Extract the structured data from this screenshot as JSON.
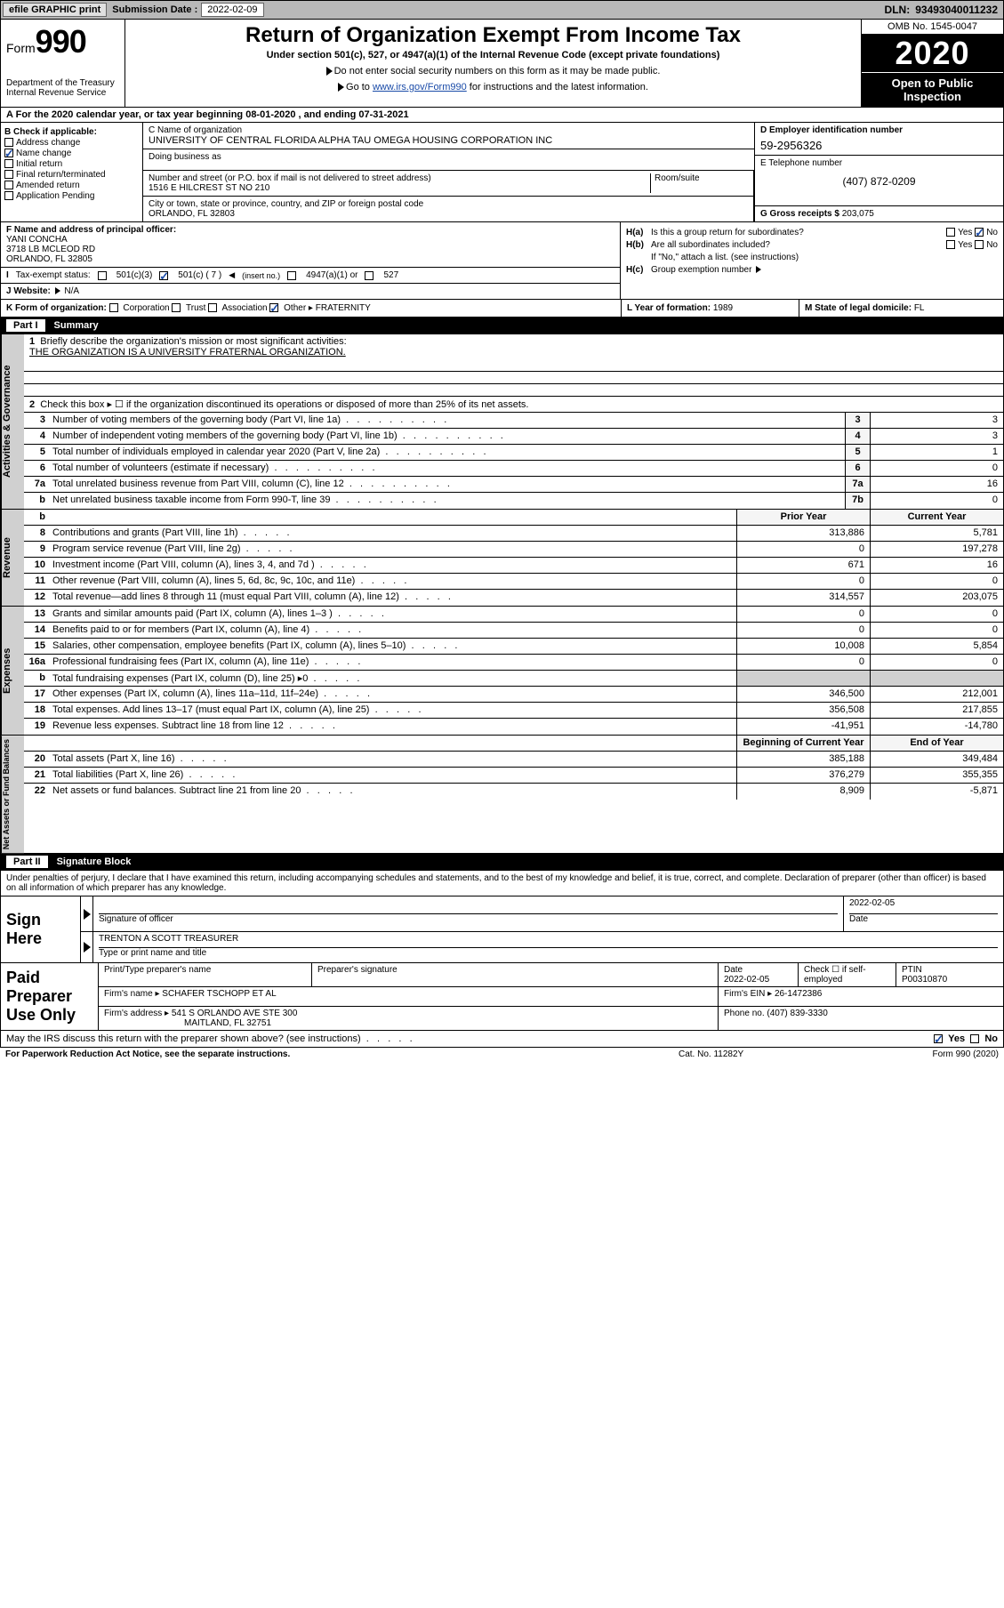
{
  "topbar": {
    "efile": "efile GRAPHIC print",
    "subdate_label": "Submission Date :",
    "subdate": "2022-02-09",
    "dln_label": "DLN:",
    "dln": "93493040011232"
  },
  "header": {
    "form_prefix": "Form",
    "form_number": "990",
    "dept1": "Department of the Treasury",
    "dept2": "Internal Revenue Service",
    "title": "Return of Organization Exempt From Income Tax",
    "sub": "Under section 501(c), 527, or 4947(a)(1) of the Internal Revenue Code (except private foundations)",
    "inst1": "Do not enter social security numbers on this form as it may be made public.",
    "inst2_pre": "Go to ",
    "inst2_link": "www.irs.gov/Form990",
    "inst2_post": " for instructions and the latest information.",
    "omb": "OMB No. 1545-0047",
    "year": "2020",
    "open1": "Open to Public",
    "open2": "Inspection"
  },
  "line_a": "For the 2020 calendar year, or tax year beginning 08-01-2020   , and ending 07-31-2021",
  "col_b": {
    "label": "B Check if applicable:",
    "addr": "Address change",
    "name": "Name change",
    "init": "Initial return",
    "final": "Final return/terminated",
    "amend": "Amended return",
    "app": "Application Pending"
  },
  "col_c": {
    "name_label": "C Name of organization",
    "name": "UNIVERSITY OF CENTRAL FLORIDA ALPHA TAU OMEGA HOUSING CORPORATION INC",
    "dba_label": "Doing business as",
    "street_label": "Number and street (or P.O. box if mail is not delivered to street address)",
    "street": "1516 E HILCREST ST NO 210",
    "room_label": "Room/suite",
    "city_label": "City or town, state or province, country, and ZIP or foreign postal code",
    "city": "ORLANDO, FL  32803"
  },
  "col_d": {
    "ein_label": "D Employer identification number",
    "ein": "59-2956326",
    "tel_label": "E Telephone number",
    "tel": "(407) 872-0209",
    "gross_label": "G Gross receipts $",
    "gross": "203,075"
  },
  "col_f": {
    "officer_label": "F Name and address of principal officer:",
    "officer_name": "YANI CONCHA",
    "officer_addr1": "3718 LB MCLEOD RD",
    "officer_addr2": "ORLANDO, FL  32805",
    "tax_label": "Tax-exempt status:",
    "tax_501c3": "501(c)(3)",
    "tax_501c": "501(c) ( 7 )",
    "tax_insert": "(insert no.)",
    "tax_4947": "4947(a)(1) or",
    "tax_527": "527",
    "web_label": "J   Website:",
    "web": "N/A"
  },
  "col_h": {
    "ha_label": "H(a)",
    "ha_text": "Is this a group return for subordinates?",
    "hb_label": "H(b)",
    "hb_text": "Are all subordinates included?",
    "h_ifno": "If \"No,\" attach a list. (see instructions)",
    "hc_label": "H(c)",
    "hc_text": "Group exemption number",
    "yes": "Yes",
    "no": "No"
  },
  "line_k": {
    "k_label": "K Form of organization:",
    "k_corp": "Corporation",
    "k_trust": "Trust",
    "k_assoc": "Association",
    "k_other": "Other",
    "k_other_val": "FRATERNITY",
    "l_label": "L Year of formation:",
    "l_val": "1989",
    "m_label": "M State of legal domicile:",
    "m_val": "FL"
  },
  "part1": {
    "hdr_part": "Part I",
    "hdr_title": "Summary",
    "q1_label": "1",
    "q1_text": "Briefly describe the organization's mission or most significant activities:",
    "q1_mission": "THE ORGANIZATION IS A UNIVERSITY FRATERNAL ORGANIZATION.",
    "q2_label": "2",
    "q2_text": "Check this box ▸ ☐  if the organization discontinued its operations or disposed of more than 25% of its net assets.",
    "side_gov": "Activities & Governance",
    "side_rev": "Revenue",
    "side_exp": "Expenses",
    "side_net": "Net Assets or Fund Balances",
    "rows_gov": [
      {
        "n": "3",
        "d": "Number of voting members of the governing body (Part VI, line 1a)",
        "b": "3",
        "v": "3"
      },
      {
        "n": "4",
        "d": "Number of independent voting members of the governing body (Part VI, line 1b)",
        "b": "4",
        "v": "3"
      },
      {
        "n": "5",
        "d": "Total number of individuals employed in calendar year 2020 (Part V, line 2a)",
        "b": "5",
        "v": "1"
      },
      {
        "n": "6",
        "d": "Total number of volunteers (estimate if necessary)",
        "b": "6",
        "v": "0"
      },
      {
        "n": "7a",
        "d": "Total unrelated business revenue from Part VIII, column (C), line 12",
        "b": "7a",
        "v": "16"
      },
      {
        "n": "b",
        "d": "Net unrelated business taxable income from Form 990-T, line 39",
        "b": "7b",
        "v": "0"
      }
    ],
    "col_py": "Prior Year",
    "col_cy": "Current Year",
    "rows_rev": [
      {
        "n": "8",
        "d": "Contributions and grants (Part VIII, line 1h)",
        "py": "313,886",
        "cy": "5,781"
      },
      {
        "n": "9",
        "d": "Program service revenue (Part VIII, line 2g)",
        "py": "0",
        "cy": "197,278"
      },
      {
        "n": "10",
        "d": "Investment income (Part VIII, column (A), lines 3, 4, and 7d )",
        "py": "671",
        "cy": "16"
      },
      {
        "n": "11",
        "d": "Other revenue (Part VIII, column (A), lines 5, 6d, 8c, 9c, 10c, and 11e)",
        "py": "0",
        "cy": "0"
      },
      {
        "n": "12",
        "d": "Total revenue—add lines 8 through 11 (must equal Part VIII, column (A), line 12)",
        "py": "314,557",
        "cy": "203,075"
      }
    ],
    "rows_exp": [
      {
        "n": "13",
        "d": "Grants and similar amounts paid (Part IX, column (A), lines 1–3 )",
        "py": "0",
        "cy": "0"
      },
      {
        "n": "14",
        "d": "Benefits paid to or for members (Part IX, column (A), line 4)",
        "py": "0",
        "cy": "0"
      },
      {
        "n": "15",
        "d": "Salaries, other compensation, employee benefits (Part IX, column (A), lines 5–10)",
        "py": "10,008",
        "cy": "5,854"
      },
      {
        "n": "16a",
        "d": "Professional fundraising fees (Part IX, column (A), line 11e)",
        "py": "0",
        "cy": "0"
      },
      {
        "n": "b",
        "d": "Total fundraising expenses (Part IX, column (D), line 25) ▸0",
        "py": "",
        "cy": ""
      },
      {
        "n": "17",
        "d": "Other expenses (Part IX, column (A), lines 11a–11d, 11f–24e)",
        "py": "346,500",
        "cy": "212,001"
      },
      {
        "n": "18",
        "d": "Total expenses. Add lines 13–17 (must equal Part IX, column (A), line 25)",
        "py": "356,508",
        "cy": "217,855"
      },
      {
        "n": "19",
        "d": "Revenue less expenses. Subtract line 18 from line 12",
        "py": "-41,951",
        "cy": "-14,780"
      }
    ],
    "col_boy": "Beginning of Current Year",
    "col_eoy": "End of Year",
    "rows_net": [
      {
        "n": "20",
        "d": "Total assets (Part X, line 16)",
        "py": "385,188",
        "cy": "349,484"
      },
      {
        "n": "21",
        "d": "Total liabilities (Part X, line 26)",
        "py": "376,279",
        "cy": "355,355"
      },
      {
        "n": "22",
        "d": "Net assets or fund balances. Subtract line 21 from line 20",
        "py": "8,909",
        "cy": "-5,871"
      }
    ]
  },
  "part2": {
    "hdr_part": "Part II",
    "hdr_title": "Signature Block",
    "decl": "Under penalties of perjury, I declare that I have examined this return, including accompanying schedules and statements, and to the best of my knowledge and belief, it is true, correct, and complete. Declaration of preparer (other than officer) is based on all information of which preparer has any knowledge."
  },
  "sign": {
    "label": "Sign Here",
    "sig_label": "Signature of officer",
    "date_label": "Date",
    "date": "2022-02-05",
    "name": "TRENTON A SCOTT  TREASURER",
    "name_label": "Type or print name and title"
  },
  "prep": {
    "label": "Paid Preparer Use Only",
    "c1": "Print/Type preparer's name",
    "c2": "Preparer's signature",
    "c3_label": "Date",
    "c3": "2022-02-05",
    "c4_label": "Check ☐ if self-employed",
    "c5_label": "PTIN",
    "c5": "P00310870",
    "firm_label": "Firm's name   ▸",
    "firm": "SCHAFER TSCHOPP ET AL",
    "ein_label": "Firm's EIN ▸",
    "ein": "26-1472386",
    "addr_label": "Firm's address ▸",
    "addr1": "541 S ORLANDO AVE STE 300",
    "addr2": "MAITLAND, FL  32751",
    "phone_label": "Phone no.",
    "phone": "(407) 839-3330"
  },
  "discuss": {
    "text": "May the IRS discuss this return with the preparer shown above? (see instructions)",
    "yes": "Yes",
    "no": "No"
  },
  "footer": {
    "left": "For Paperwork Reduction Act Notice, see the separate instructions.",
    "mid": "Cat. No. 11282Y",
    "right": "Form 990 (2020)"
  }
}
